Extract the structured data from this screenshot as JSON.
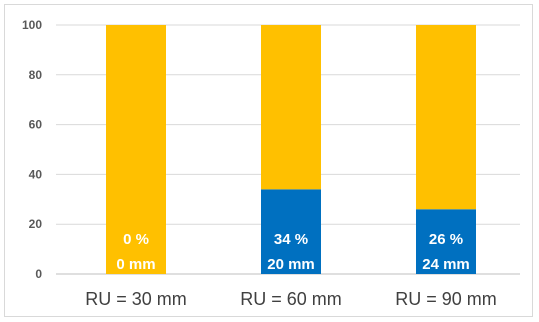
{
  "chart_data": {
    "type": "bar",
    "stacked": true,
    "title": "",
    "xlabel": "",
    "ylabel": "",
    "ylim": [
      0,
      100
    ],
    "yticks": [
      0,
      20,
      40,
      60,
      80,
      100
    ],
    "grid": true,
    "legend": "none",
    "categories": [
      "RU = 30 mm",
      "RU = 60 mm",
      "RU = 90 mm"
    ],
    "series": [
      {
        "color": "#0070c0",
        "values": [
          0,
          34,
          26
        ]
      },
      {
        "color": "#ffc000",
        "values": [
          100,
          66,
          74
        ]
      }
    ],
    "data_labels": [
      {
        "percent": "0 %",
        "mm": "0 mm"
      },
      {
        "percent": "34 %",
        "mm": "20 mm"
      },
      {
        "percent": "26 %",
        "mm": "24 mm"
      }
    ]
  }
}
